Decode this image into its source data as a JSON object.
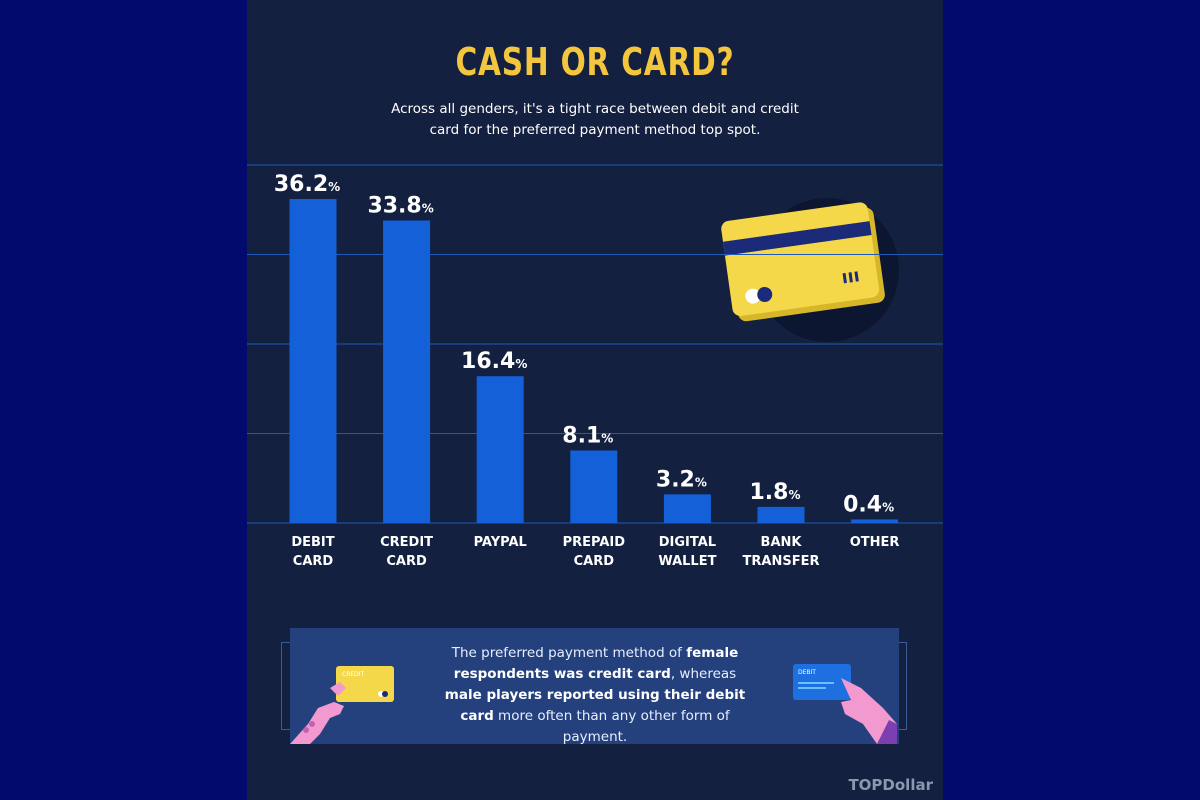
{
  "title": "CASH OR CARD?",
  "subtitle": "Across all genders, it's a tight race between debit and credit card for the preferred payment method top spot.",
  "chart_data": {
    "type": "bar",
    "categories": [
      [
        "DEBIT",
        "CARD"
      ],
      [
        "CREDIT",
        "CARD"
      ],
      [
        "PAYPAL"
      ],
      [
        "PREPAID",
        "CARD"
      ],
      [
        "DIGITAL",
        "WALLET"
      ],
      [
        "BANK",
        "TRANSFER"
      ],
      [
        "OTHER"
      ]
    ],
    "values": [
      36.2,
      33.8,
      16.4,
      8.1,
      3.2,
      1.8,
      0.4
    ],
    "value_labels": [
      "36.2",
      "33.8",
      "16.4",
      "8.1",
      "3.2",
      "1.8",
      "0.4"
    ],
    "unit": "%",
    "ylim": [
      0,
      40
    ],
    "grid": true,
    "bar_color": "#1460d8"
  },
  "callout": {
    "part1": "The preferred payment method of ",
    "bold1": "female respondents was credit card",
    "part2": ", whereas ",
    "bold2": "male players reported using their debit card",
    "part3": " more often than any other form of payment."
  },
  "illustrations": {
    "credit_card_label": "CREDIT",
    "debit_card_label": "DEBIT"
  },
  "brand": "TOPDollar",
  "colors": {
    "background": "#020a6e",
    "panel": "#132040",
    "accent": "#f4c63d",
    "bar": "#1460d8",
    "gridline": "#1e5ab8"
  }
}
